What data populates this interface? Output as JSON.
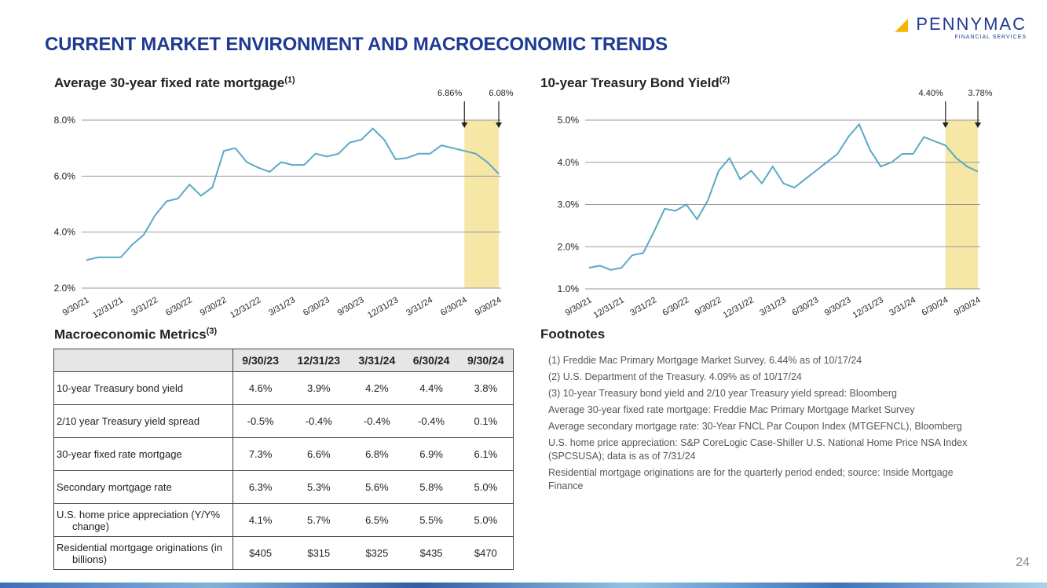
{
  "header": {
    "title": "CURRENT MARKET ENVIRONMENT AND MACROECONOMIC TRENDS",
    "logo": "PENNYMAC",
    "logo_sub": "FINANCIAL SERVICES"
  },
  "chart_data": [
    {
      "type": "line",
      "title": "Average 30-year fixed rate mortgage",
      "title_note": "(1)",
      "annotations": [
        "6.86%",
        "6.08%"
      ],
      "categories": [
        "9/30/21",
        null,
        null,
        "12/31/21",
        null,
        null,
        "3/31/22",
        null,
        null,
        "6/30/22",
        null,
        null,
        "9/30/22",
        null,
        null,
        "12/31/22",
        null,
        null,
        "3/31/23",
        null,
        null,
        "6/30/23",
        null,
        null,
        "9/30/23",
        null,
        null,
        "12/31/23",
        null,
        null,
        "3/31/24",
        null,
        null,
        "6/30/24",
        null,
        null,
        "9/30/24"
      ],
      "values": [
        3.0,
        3.1,
        3.1,
        3.1,
        3.55,
        3.9,
        4.6,
        5.1,
        5.2,
        5.7,
        5.3,
        5.6,
        6.9,
        7.0,
        6.5,
        6.3,
        6.15,
        6.5,
        6.4,
        6.4,
        6.8,
        6.7,
        6.8,
        7.2,
        7.3,
        7.7,
        7.3,
        6.6,
        6.65,
        6.8,
        6.8,
        7.1,
        7.0,
        6.9,
        6.8,
        6.5,
        6.08
      ],
      "color": "#5aa9c4",
      "ylim": [
        2,
        8
      ],
      "yticks": [
        {
          "value": 2,
          "label": "2.0%"
        },
        {
          "value": 4,
          "label": "4.0%"
        },
        {
          "value": 6,
          "label": "6.0%"
        },
        {
          "value": 8,
          "label": "8.0%"
        }
      ],
      "grid": true
    },
    {
      "type": "line",
      "title": "10-year Treasury Bond Yield",
      "title_note": "(2)",
      "annotations": [
        "4.40%",
        "3.78%"
      ],
      "categories": [
        "9/30/21",
        null,
        null,
        "12/31/21",
        null,
        null,
        "3/31/22",
        null,
        null,
        "6/30/22",
        null,
        null,
        "9/30/22",
        null,
        null,
        "12/31/22",
        null,
        null,
        "3/31/23",
        null,
        null,
        "6/30/23",
        null,
        null,
        "9/30/23",
        null,
        null,
        "12/31/23",
        null,
        null,
        "3/31/24",
        null,
        null,
        "6/30/24",
        null,
        null,
        "9/30/24"
      ],
      "values": [
        1.5,
        1.55,
        1.45,
        1.5,
        1.8,
        1.85,
        2.35,
        2.9,
        2.85,
        3.0,
        2.65,
        3.1,
        3.8,
        4.1,
        3.6,
        3.8,
        3.5,
        3.9,
        3.5,
        3.4,
        3.6,
        3.8,
        4.0,
        4.2,
        4.6,
        4.9,
        4.3,
        3.9,
        4.0,
        4.2,
        4.2,
        4.6,
        4.5,
        4.4,
        4.1,
        3.9,
        3.78
      ],
      "color": "#5aa9c4",
      "ylim": [
        1,
        5
      ],
      "yticks": [
        {
          "value": 1,
          "label": "1.0%"
        },
        {
          "value": 2,
          "label": "2.0%"
        },
        {
          "value": 3,
          "label": "3.0%"
        },
        {
          "value": 4,
          "label": "4.0%"
        },
        {
          "value": 5,
          "label": "5.0%"
        }
      ],
      "grid": true
    }
  ],
  "table": {
    "title": "Macroeconomic Metrics",
    "title_note": "(3)",
    "columns": [
      "9/30/23",
      "12/31/23",
      "3/31/24",
      "6/30/24",
      "9/30/24"
    ],
    "rows": [
      [
        "10-year Treasury bond yield",
        "4.6%",
        "3.9%",
        "4.2%",
        "4.4%",
        "3.8%"
      ],
      [
        "2/10 year Treasury yield spread",
        "-0.5%",
        "-0.4%",
        "-0.4%",
        "-0.4%",
        "0.1%"
      ],
      [
        "30-year fixed rate mortgage",
        "7.3%",
        "6.6%",
        "6.8%",
        "6.9%",
        "6.1%"
      ],
      [
        "Secondary mortgage rate",
        "6.3%",
        "5.3%",
        "5.6%",
        "5.8%",
        "5.0%"
      ],
      [
        "U.S. home price appreciation (Y/Y% change)",
        "4.1%",
        "5.7%",
        "6.5%",
        "5.5%",
        "5.0%"
      ],
      [
        "Residential mortgage originations (in billions)",
        "$405",
        "$315",
        "$325",
        "$435",
        "$470"
      ]
    ]
  },
  "footnotes": {
    "title": "Footnotes",
    "items": [
      "(1) Freddie Mac Primary Mortgage Market Survey. 6.44% as of 10/17/24",
      "(2) U.S. Department of the Treasury. 4.09% as of 10/17/24",
      "(3) 10-year Treasury bond yield and 2/10 year Treasury yield spread: Bloomberg",
      "Average 30-year fixed rate mortgage: Freddie Mac Primary Mortgage Market Survey",
      "Average secondary mortgage rate: 30-Year FNCL Par Coupon Index (MTGEFNCL), Bloomberg",
      "U.S. home price appreciation: S&P CoreLogic Case-Shiller U.S. National Home Price NSA Index (SPCSUSA); data is as of 7/31/24",
      "Residential mortgage originations are for the quarterly period ended; source: Inside Mortgage Finance"
    ]
  },
  "page_number": "24"
}
